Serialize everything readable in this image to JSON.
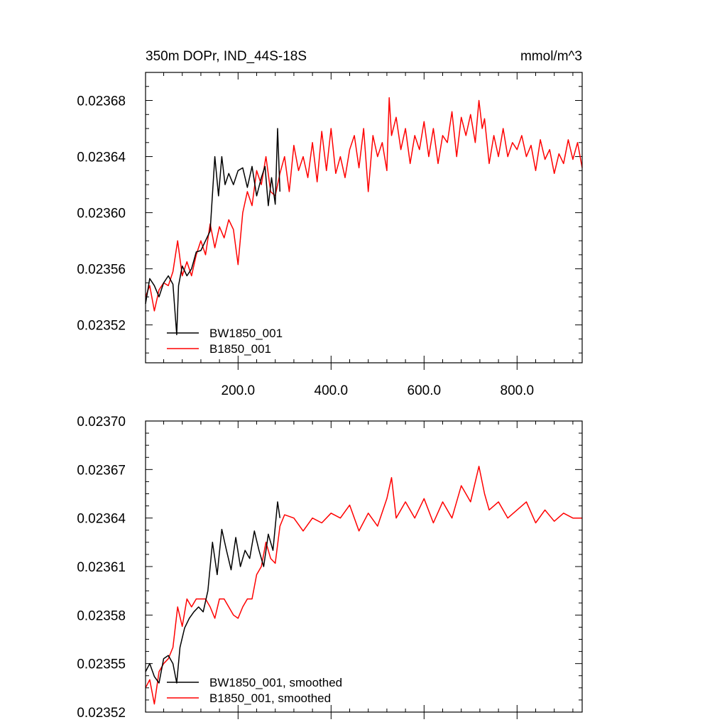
{
  "chart_data": [
    {
      "type": "line",
      "title": "350m DOPr, IND_44S-18S",
      "units": "mmol/m^3",
      "xlabel": "",
      "ylabel": "",
      "xlim": [
        1,
        940
      ],
      "ylim": [
        0.023493,
        0.0237
      ],
      "xticks": [
        200,
        400,
        600,
        800
      ],
      "xtick_labels": [
        "200.0",
        "400.0",
        "600.0",
        "800.0"
      ],
      "yticks": [
        0.02352,
        0.02356,
        0.0236,
        0.02364,
        0.02368
      ],
      "ytick_labels": [
        "0.02352",
        "0.02356",
        "0.02360",
        "0.02364",
        "0.02368"
      ],
      "legend_position": "bottom-left",
      "grid": false,
      "series": [
        {
          "name": "BW1850_001",
          "color": "#000000",
          "x": [
            1,
            10,
            20,
            30,
            40,
            50,
            60,
            68,
            72,
            80,
            90,
            100,
            110,
            120,
            130,
            140,
            150,
            158,
            165,
            172,
            180,
            190,
            200,
            210,
            220,
            230,
            240,
            250,
            258,
            265,
            272,
            280,
            285,
            290
          ],
          "y": [
            0.023535,
            0.023553,
            0.023548,
            0.02354,
            0.02355,
            0.023555,
            0.023549,
            0.023513,
            0.023548,
            0.023562,
            0.023555,
            0.02356,
            0.023572,
            0.023573,
            0.02358,
            0.023587,
            0.02364,
            0.023612,
            0.02364,
            0.02362,
            0.023628,
            0.02362,
            0.02363,
            0.023632,
            0.023618,
            0.023633,
            0.023612,
            0.023625,
            0.023633,
            0.023605,
            0.023625,
            0.023606,
            0.02366,
            0.023615
          ]
        },
        {
          "name": "B1850_001",
          "color": "#ff0000",
          "x": [
            1,
            10,
            20,
            30,
            40,
            50,
            60,
            70,
            80,
            90,
            100,
            110,
            120,
            130,
            140,
            150,
            160,
            170,
            180,
            190,
            200,
            210,
            220,
            230,
            240,
            250,
            260,
            270,
            280,
            290,
            300,
            310,
            320,
            330,
            340,
            350,
            360,
            370,
            380,
            390,
            400,
            410,
            420,
            430,
            440,
            450,
            460,
            470,
            480,
            490,
            500,
            510,
            520,
            525,
            530,
            540,
            550,
            560,
            570,
            580,
            590,
            600,
            610,
            620,
            630,
            640,
            650,
            660,
            670,
            680,
            690,
            700,
            710,
            718,
            725,
            730,
            740,
            750,
            760,
            770,
            780,
            790,
            800,
            810,
            820,
            830,
            840,
            850,
            860,
            870,
            880,
            890,
            900,
            910,
            920,
            930,
            940
          ],
          "y": [
            0.02354,
            0.023548,
            0.02353,
            0.023545,
            0.02355,
            0.023548,
            0.023558,
            0.02358,
            0.023555,
            0.023565,
            0.023555,
            0.02357,
            0.02358,
            0.02357,
            0.023592,
            0.023575,
            0.02359,
            0.023582,
            0.023595,
            0.023588,
            0.023563,
            0.0236,
            0.023615,
            0.023605,
            0.02363,
            0.02362,
            0.02364,
            0.023615,
            0.023612,
            0.023628,
            0.02364,
            0.023615,
            0.023648,
            0.02363,
            0.02364,
            0.023625,
            0.02365,
            0.023622,
            0.023658,
            0.02363,
            0.02366,
            0.023628,
            0.02364,
            0.023625,
            0.023645,
            0.023655,
            0.023632,
            0.02366,
            0.023615,
            0.023655,
            0.02364,
            0.02365,
            0.02363,
            0.023682,
            0.023655,
            0.023668,
            0.023645,
            0.02366,
            0.023635,
            0.023655,
            0.023645,
            0.023665,
            0.02364,
            0.02366,
            0.023635,
            0.023655,
            0.02365,
            0.023672,
            0.02364,
            0.023668,
            0.023655,
            0.02367,
            0.02365,
            0.02368,
            0.02366,
            0.023667,
            0.023635,
            0.023655,
            0.02364,
            0.02366,
            0.02364,
            0.02365,
            0.023645,
            0.023655,
            0.02364,
            0.023648,
            0.02363,
            0.023652,
            0.023638,
            0.023645,
            0.023628,
            0.023642,
            0.023635,
            0.023652,
            0.023638,
            0.02365,
            0.023632
          ]
        }
      ]
    },
    {
      "type": "line",
      "title": "",
      "xlabel": "",
      "ylabel": "",
      "xlim": [
        1,
        940
      ],
      "ylim": [
        0.02352,
        0.0237
      ],
      "xticks": [
        200,
        400,
        600,
        800
      ],
      "xtick_labels": [],
      "yticks": [
        0.02352,
        0.02355,
        0.02358,
        0.02361,
        0.02364,
        0.02367,
        0.0237
      ],
      "ytick_labels": [
        "0.02352",
        "0.02355",
        "0.02358",
        "0.02361",
        "0.02364",
        "0.02367",
        "0.02370"
      ],
      "legend_position": "bottom-left",
      "grid": false,
      "series": [
        {
          "name": "BW1850_001, smoothed",
          "color": "#000000",
          "x": [
            1,
            10,
            20,
            30,
            40,
            50,
            60,
            68,
            75,
            85,
            95,
            105,
            115,
            125,
            135,
            145,
            155,
            165,
            175,
            185,
            195,
            205,
            215,
            225,
            235,
            245,
            255,
            265,
            275,
            285,
            290
          ],
          "y": [
            0.023545,
            0.02355,
            0.023542,
            0.023538,
            0.023553,
            0.023555,
            0.02355,
            0.023538,
            0.02356,
            0.023572,
            0.023578,
            0.023582,
            0.023585,
            0.023582,
            0.023595,
            0.023625,
            0.023605,
            0.023633,
            0.02362,
            0.023608,
            0.023628,
            0.02361,
            0.02362,
            0.023615,
            0.023632,
            0.02362,
            0.02361,
            0.02363,
            0.02362,
            0.02365,
            0.02364
          ]
        },
        {
          "name": "B1850_001, smoothed",
          "color": "#ff0000",
          "x": [
            1,
            10,
            20,
            30,
            40,
            50,
            60,
            70,
            80,
            90,
            100,
            110,
            120,
            130,
            140,
            150,
            160,
            170,
            180,
            190,
            200,
            210,
            220,
            230,
            240,
            250,
            260,
            270,
            280,
            290,
            300,
            320,
            340,
            360,
            380,
            400,
            420,
            440,
            460,
            480,
            500,
            520,
            530,
            540,
            560,
            580,
            600,
            620,
            640,
            660,
            680,
            700,
            718,
            730,
            740,
            760,
            780,
            800,
            820,
            840,
            860,
            880,
            900,
            920,
            940
          ],
          "y": [
            0.023535,
            0.02354,
            0.023525,
            0.023545,
            0.02355,
            0.023553,
            0.02356,
            0.023585,
            0.023573,
            0.02359,
            0.023585,
            0.02359,
            0.02359,
            0.02359,
            0.023585,
            0.023578,
            0.02359,
            0.02359,
            0.023585,
            0.02358,
            0.023578,
            0.023585,
            0.02359,
            0.02359,
            0.023605,
            0.02361,
            0.023625,
            0.023615,
            0.023612,
            0.023635,
            0.023642,
            0.02364,
            0.023632,
            0.02364,
            0.023637,
            0.023643,
            0.02364,
            0.023648,
            0.023632,
            0.023643,
            0.023635,
            0.023652,
            0.023665,
            0.02364,
            0.02365,
            0.02364,
            0.023652,
            0.023637,
            0.02365,
            0.02364,
            0.02366,
            0.02365,
            0.023672,
            0.023655,
            0.023645,
            0.02365,
            0.02364,
            0.023645,
            0.02365,
            0.023637,
            0.023645,
            0.023638,
            0.023643,
            0.02364,
            0.02364
          ]
        }
      ]
    }
  ]
}
